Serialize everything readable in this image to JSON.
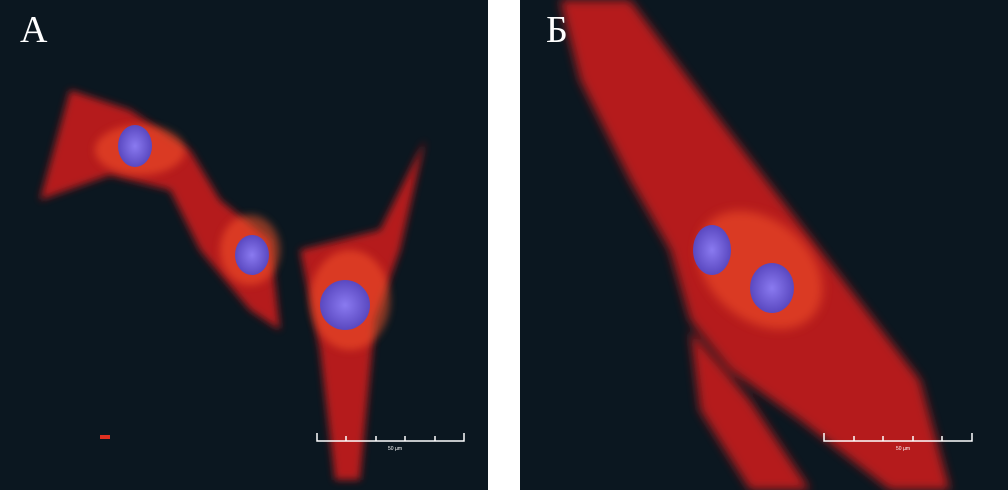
{
  "panels": [
    {
      "label": "А",
      "scale_bar": "50 µm"
    },
    {
      "label": "Б",
      "scale_bar": "50 µm"
    }
  ],
  "colors": {
    "background": "#0b1720",
    "cytoplasm": "#d9241c",
    "nucleus": "#6a5ad0",
    "scale_bar": "#ffffff"
  }
}
